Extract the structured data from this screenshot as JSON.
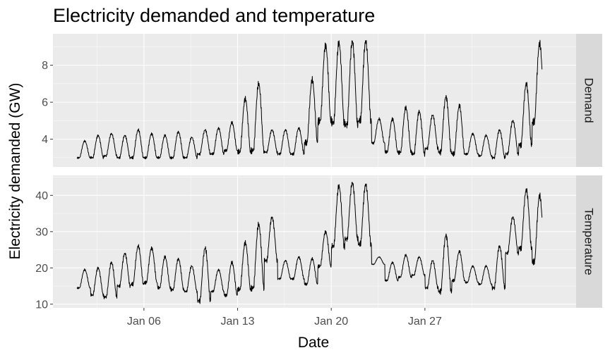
{
  "chart_data": {
    "type": "line",
    "title": "Electricity demanded and temperature",
    "xlabel": "Date",
    "ylabel": "Electricity demanded (GW)",
    "x_ticks": [
      "Jan 06",
      "Jan 13",
      "Jan 20",
      "Jan 27"
    ],
    "x_tick_days": [
      6,
      13,
      20,
      27
    ],
    "xlim_days": [
      -0.8,
      38.3
    ],
    "x_unit": "day of January",
    "facets": [
      {
        "name": "Demand",
        "ylim": [
          2.5,
          9.7
        ],
        "y_ticks": [
          4,
          6,
          8
        ],
        "y_tick_labels": [
          "4",
          "6",
          "8"
        ],
        "daily": [
          {
            "day": 1,
            "min": 3.0,
            "max": 3.9
          },
          {
            "day": 2,
            "min": 3.0,
            "max": 4.2
          },
          {
            "day": 3,
            "min": 3.1,
            "max": 4.3
          },
          {
            "day": 4,
            "min": 3.0,
            "max": 4.2
          },
          {
            "day": 5,
            "min": 3.0,
            "max": 4.5
          },
          {
            "day": 6,
            "min": 3.0,
            "max": 4.3
          },
          {
            "day": 7,
            "min": 3.0,
            "max": 4.2
          },
          {
            "day": 8,
            "min": 3.0,
            "max": 4.4
          },
          {
            "day": 9,
            "min": 3.0,
            "max": 4.1
          },
          {
            "day": 10,
            "min": 3.2,
            "max": 4.5
          },
          {
            "day": 11,
            "min": 3.2,
            "max": 4.6
          },
          {
            "day": 12,
            "min": 3.4,
            "max": 4.9
          },
          {
            "day": 13,
            "min": 3.3,
            "max": 6.2
          },
          {
            "day": 14,
            "min": 3.4,
            "max": 7.0
          },
          {
            "day": 15,
            "min": 3.3,
            "max": 4.5
          },
          {
            "day": 16,
            "min": 3.2,
            "max": 4.5
          },
          {
            "day": 17,
            "min": 3.2,
            "max": 4.6
          },
          {
            "day": 18,
            "min": 3.8,
            "max": 7.2
          },
          {
            "day": 19,
            "min": 5.0,
            "max": 9.1
          },
          {
            "day": 20,
            "min": 4.9,
            "max": 9.2
          },
          {
            "day": 21,
            "min": 4.8,
            "max": 9.3
          },
          {
            "day": 22,
            "min": 5.0,
            "max": 9.3
          },
          {
            "day": 23,
            "min": 3.8,
            "max": 5.1
          },
          {
            "day": 24,
            "min": 3.3,
            "max": 5.1
          },
          {
            "day": 25,
            "min": 3.3,
            "max": 5.7
          },
          {
            "day": 26,
            "min": 3.2,
            "max": 5.5
          },
          {
            "day": 27,
            "min": 3.5,
            "max": 5.3
          },
          {
            "day": 28,
            "min": 3.3,
            "max": 6.3
          },
          {
            "day": 29,
            "min": 3.2,
            "max": 5.8
          },
          {
            "day": 30,
            "min": 3.2,
            "max": 4.3
          },
          {
            "day": 31,
            "min": 3.1,
            "max": 4.2
          },
          {
            "day": 32,
            "min": 3.0,
            "max": 4.5
          },
          {
            "day": 33,
            "min": 3.2,
            "max": 5.0
          },
          {
            "day": 34,
            "min": 3.7,
            "max": 7.0
          },
          {
            "day": 35,
            "min": 4.9,
            "max": 9.2
          }
        ]
      },
      {
        "name": "Temperature",
        "ylim": [
          9.0,
          45.5
        ],
        "y_ticks": [
          10,
          20,
          30,
          40
        ],
        "y_tick_labels": [
          "10",
          "20",
          "30",
          "40"
        ],
        "daily": [
          {
            "day": 1,
            "min": 14.5,
            "max": 19.5
          },
          {
            "day": 2,
            "min": 12.5,
            "max": 20.0
          },
          {
            "day": 3,
            "min": 12.0,
            "max": 21.5
          },
          {
            "day": 4,
            "min": 15.0,
            "max": 24.0
          },
          {
            "day": 5,
            "min": 15.5,
            "max": 26.0
          },
          {
            "day": 6,
            "min": 16.0,
            "max": 25.5
          },
          {
            "day": 7,
            "min": 14.5,
            "max": 23.0
          },
          {
            "day": 8,
            "min": 14.0,
            "max": 22.5
          },
          {
            "day": 9,
            "min": 13.5,
            "max": 20.5
          },
          {
            "day": 10,
            "min": 11.0,
            "max": 25.5
          },
          {
            "day": 11,
            "min": 13.5,
            "max": 19.5
          },
          {
            "day": 12,
            "min": 12.5,
            "max": 21.5
          },
          {
            "day": 13,
            "min": 14.0,
            "max": 27.0
          },
          {
            "day": 14,
            "min": 14.5,
            "max": 32.0
          },
          {
            "day": 15,
            "min": 22.0,
            "max": 34.0
          },
          {
            "day": 16,
            "min": 17.0,
            "max": 22.0
          },
          {
            "day": 17,
            "min": 17.0,
            "max": 23.0
          },
          {
            "day": 18,
            "min": 15.5,
            "max": 22.5
          },
          {
            "day": 19,
            "min": 20.5,
            "max": 30.0
          },
          {
            "day": 20,
            "min": 26.0,
            "max": 42.5
          },
          {
            "day": 21,
            "min": 28.0,
            "max": 43.5
          },
          {
            "day": 22,
            "min": 26.5,
            "max": 43.0
          },
          {
            "day": 23,
            "min": 21.0,
            "max": 23.0
          },
          {
            "day": 24,
            "min": 16.5,
            "max": 21.5
          },
          {
            "day": 25,
            "min": 17.5,
            "max": 23.5
          },
          {
            "day": 26,
            "min": 18.0,
            "max": 23.0
          },
          {
            "day": 27,
            "min": 14.5,
            "max": 22.0
          },
          {
            "day": 28,
            "min": 13.5,
            "max": 29.0
          },
          {
            "day": 29,
            "min": 16.5,
            "max": 24.5
          },
          {
            "day": 30,
            "min": 16.0,
            "max": 20.5
          },
          {
            "day": 31,
            "min": 15.5,
            "max": 20.5
          },
          {
            "day": 32,
            "min": 14.5,
            "max": 26.0
          },
          {
            "day": 33,
            "min": 24.0,
            "max": 34.0
          },
          {
            "day": 34,
            "min": 25.5,
            "max": 41.5
          },
          {
            "day": 35,
            "min": 21.5,
            "max": 40.0
          }
        ]
      }
    ],
    "grid": true,
    "legend": "none"
  }
}
